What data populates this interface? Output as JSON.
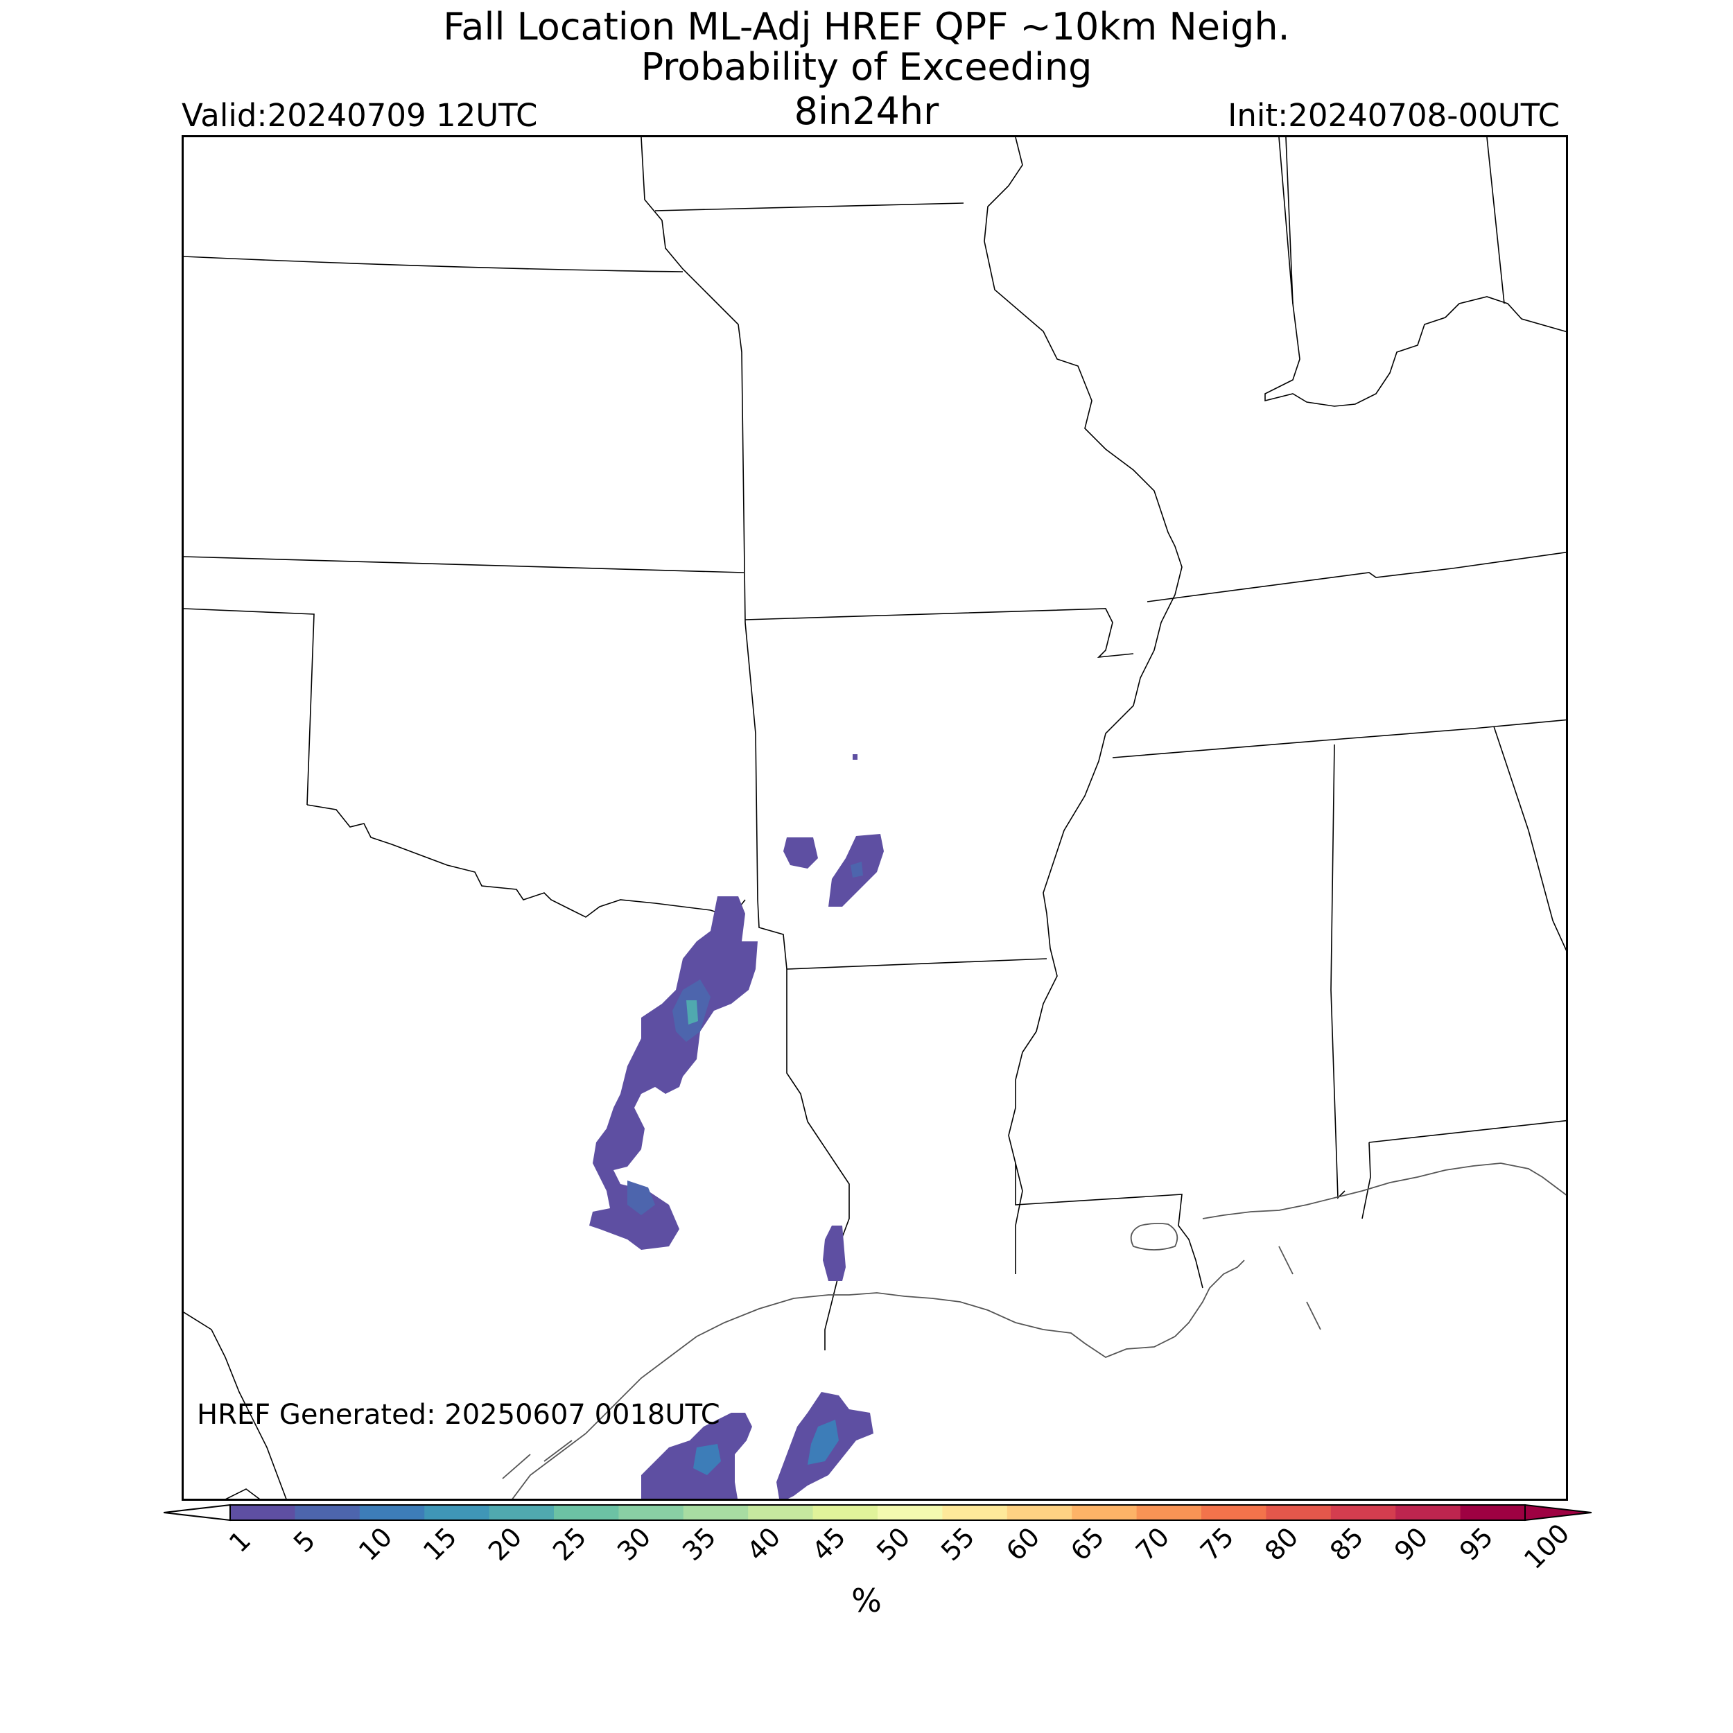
{
  "title": {
    "line1": "Fall Location ML-Adj HREF QPF ~10km Neigh.",
    "line2": "Probability of Exceeding",
    "line3": "8in24hr"
  },
  "valid": "Valid:20240709 12UTC",
  "init": "Init:20240708-00UTC",
  "generated": "HREF Generated: 20250607 0018UTC",
  "colorbar": {
    "label": "%",
    "ticks": [
      "1",
      "5",
      "10",
      "15",
      "20",
      "25",
      "30",
      "35",
      "40",
      "45",
      "50",
      "55",
      "60",
      "65",
      "70",
      "75",
      "80",
      "85",
      "90",
      "95",
      "100"
    ],
    "colors": [
      "#5e4fa2",
      "#4d65ad",
      "#3d7db8",
      "#3f96b7",
      "#50a9af",
      "#6cc2a4",
      "#89cfa4",
      "#a8dca2",
      "#c6e89f",
      "#e1f39a",
      "#f4fab0",
      "#fee99a",
      "#fed283",
      "#fdb367",
      "#f99455",
      "#f3734b",
      "#e4574b",
      "#d43d4f",
      "#be254f",
      "#9e0142"
    ],
    "under_color": "#ffffff",
    "over_color": "#9e0142"
  },
  "probability_colors": {
    "low": "#5e4fa2",
    "mid": "#4d65ad",
    "high": "#3d7db8",
    "peak": "#50a9af"
  }
}
